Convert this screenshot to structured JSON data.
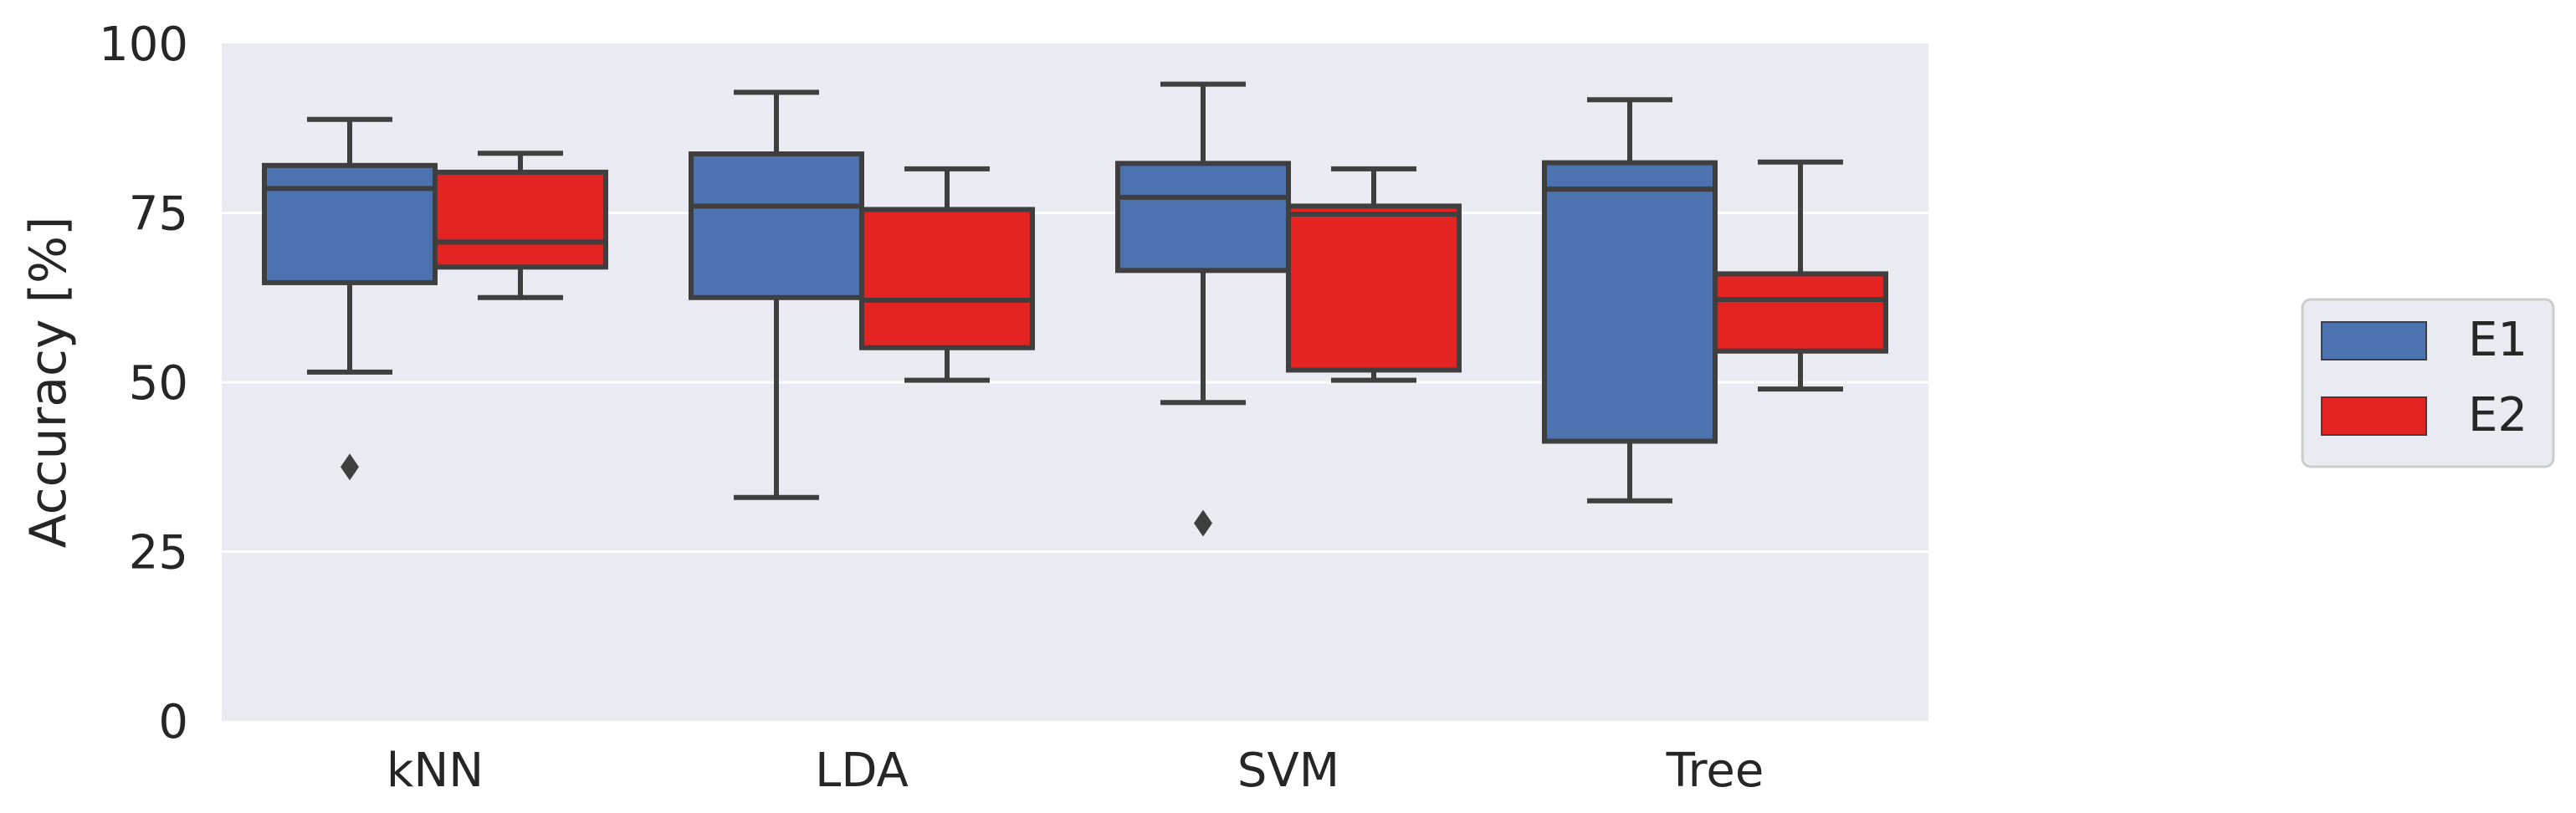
{
  "chart_data": {
    "type": "box",
    "title": "",
    "xlabel": "",
    "ylabel": "Accuracy [%]",
    "ylim": [
      0,
      100
    ],
    "yticks": [
      0,
      25,
      50,
      75,
      100
    ],
    "grid": true,
    "legend_position": "right",
    "categories": [
      "kNN",
      "LDA",
      "SVM",
      "Tree"
    ],
    "series": [
      {
        "name": "E1",
        "color": "#4C72B0",
        "boxes": [
          {
            "whisker_low": 51.5,
            "q1": 64.7,
            "median": 78.6,
            "q3": 82.0,
            "whisker_high": 88.8,
            "outliers": [
              37.5
            ]
          },
          {
            "whisker_low": 33.0,
            "q1": 62.5,
            "median": 76.0,
            "q3": 83.7,
            "whisker_high": 92.8,
            "outliers": []
          },
          {
            "whisker_low": 47.0,
            "q1": 66.5,
            "median": 77.3,
            "q3": 82.3,
            "whisker_high": 94.0,
            "outliers": [
              29.2
            ]
          },
          {
            "whisker_low": 32.5,
            "q1": 41.3,
            "median": 78.5,
            "q3": 82.4,
            "whisker_high": 91.7,
            "outliers": []
          }
        ]
      },
      {
        "name": "E2",
        "color": "#E32422",
        "boxes": [
          {
            "whisker_low": 62.5,
            "q1": 67.0,
            "median": 70.7,
            "q3": 81.0,
            "whisker_high": 83.8,
            "outliers": []
          },
          {
            "whisker_low": 50.3,
            "q1": 55.1,
            "median": 62.1,
            "q3": 75.5,
            "whisker_high": 81.5,
            "outliers": []
          },
          {
            "whisker_low": 50.3,
            "q1": 51.8,
            "median": 74.8,
            "q3": 76.0,
            "whisker_high": 81.5,
            "outliers": []
          },
          {
            "whisker_low": 49.0,
            "q1": 54.6,
            "median": 62.2,
            "q3": 66.0,
            "whisker_high": 82.5,
            "outliers": []
          }
        ]
      }
    ]
  },
  "colors": {
    "axes_background": "#EAEAF2",
    "grid": "#FFFFFF",
    "box_edge": "#3F3F3F"
  }
}
